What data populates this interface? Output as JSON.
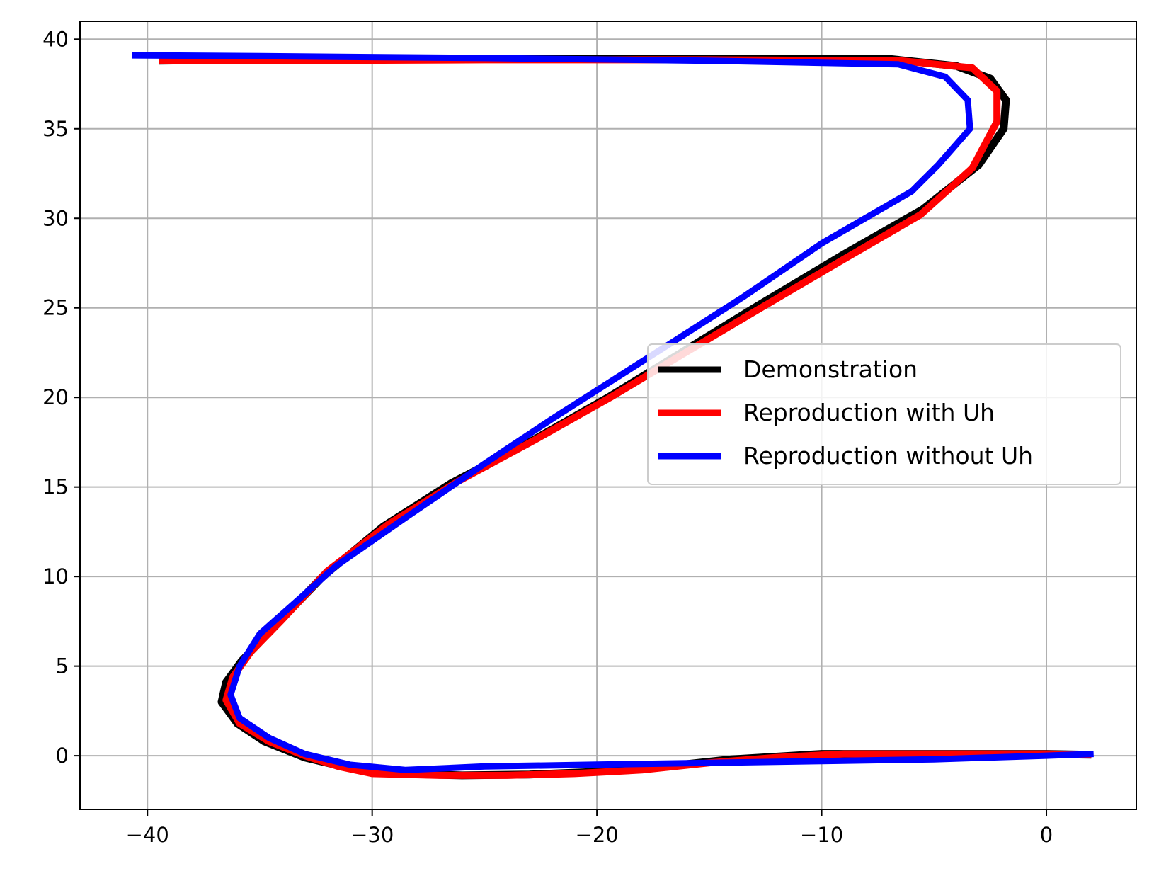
{
  "chart_data": {
    "type": "line",
    "title": "",
    "xlabel": "",
    "ylabel": "",
    "xlim": [
      -43,
      4
    ],
    "ylim": [
      -3,
      41
    ],
    "grid": true,
    "legend_position": "center-right",
    "x_ticks": [
      -40,
      -30,
      -20,
      -10,
      0
    ],
    "x_tick_labels": [
      "−40",
      "−30",
      "−20",
      "−10",
      "0"
    ],
    "y_ticks": [
      0,
      5,
      10,
      15,
      20,
      25,
      30,
      35,
      40
    ],
    "y_tick_labels": [
      "0",
      "5",
      "10",
      "15",
      "20",
      "25",
      "30",
      "35",
      "40"
    ],
    "series": [
      {
        "name": "Demonstration",
        "color": "#000000",
        "points": [
          [
            2.0,
            0.05
          ],
          [
            0.0,
            0.1
          ],
          [
            -5.0,
            0.1
          ],
          [
            -10.0,
            0.1
          ],
          [
            -14.0,
            -0.2
          ],
          [
            -17.0,
            -0.6
          ],
          [
            -20.0,
            -0.9
          ],
          [
            -23.0,
            -1.05
          ],
          [
            -26.0,
            -1.1
          ],
          [
            -29.0,
            -1.0
          ],
          [
            -31.0,
            -0.7
          ],
          [
            -33.0,
            -0.1
          ],
          [
            -34.8,
            0.8
          ],
          [
            -36.0,
            1.8
          ],
          [
            -36.7,
            3.0
          ],
          [
            -36.5,
            4.1
          ],
          [
            -35.8,
            5.3
          ],
          [
            -34.5,
            7.0
          ],
          [
            -32.2,
            10.0
          ],
          [
            -29.5,
            12.8
          ],
          [
            -26.5,
            15.2
          ],
          [
            -23.0,
            17.5
          ],
          [
            -19.5,
            20.0
          ],
          [
            -16.5,
            22.3
          ],
          [
            -13.0,
            25.0
          ],
          [
            -9.0,
            28.0
          ],
          [
            -5.5,
            30.5
          ],
          [
            -3.0,
            33.0
          ],
          [
            -1.9,
            35.0
          ],
          [
            -1.8,
            36.6
          ],
          [
            -2.5,
            37.8
          ],
          [
            -4.0,
            38.5
          ],
          [
            -7.0,
            38.9
          ],
          [
            -15.0,
            38.9
          ],
          [
            -25.0,
            38.9
          ],
          [
            -35.0,
            38.85
          ],
          [
            -39.5,
            38.8
          ]
        ]
      },
      {
        "name": "Reproduction with Uh",
        "color": "#ff0000",
        "points": [
          [
            2.0,
            0.05
          ],
          [
            0.0,
            0.1
          ],
          [
            -4.0,
            0.1
          ],
          [
            -9.0,
            0.1
          ],
          [
            -12.0,
            -0.1
          ],
          [
            -15.0,
            -0.4
          ],
          [
            -18.0,
            -0.8
          ],
          [
            -21.0,
            -1.0
          ],
          [
            -24.0,
            -1.1
          ],
          [
            -27.0,
            -1.1
          ],
          [
            -30.0,
            -1.0
          ],
          [
            -31.5,
            -0.6
          ],
          [
            -33.0,
            0.0
          ],
          [
            -34.6,
            0.8
          ],
          [
            -35.9,
            1.8
          ],
          [
            -36.5,
            3.1
          ],
          [
            -36.2,
            4.4
          ],
          [
            -35.4,
            5.8
          ],
          [
            -34.0,
            7.6
          ],
          [
            -32.0,
            10.3
          ],
          [
            -29.3,
            12.9
          ],
          [
            -26.2,
            15.3
          ],
          [
            -22.8,
            17.6
          ],
          [
            -19.4,
            20.0
          ],
          [
            -16.2,
            22.4
          ],
          [
            -12.7,
            25.0
          ],
          [
            -8.9,
            27.8
          ],
          [
            -5.6,
            30.2
          ],
          [
            -3.3,
            32.8
          ],
          [
            -2.2,
            35.4
          ],
          [
            -2.2,
            37.1
          ],
          [
            -3.3,
            38.4
          ],
          [
            -6.5,
            38.8
          ],
          [
            -15.0,
            38.85
          ],
          [
            -25.0,
            38.85
          ],
          [
            -35.0,
            38.8
          ],
          [
            -39.5,
            38.8
          ]
        ]
      },
      {
        "name": "Reproduction without Uh",
        "color": "#0000ff",
        "points": [
          [
            2.1,
            0.1
          ],
          [
            0.0,
            0.0
          ],
          [
            -5.0,
            -0.2
          ],
          [
            -10.0,
            -0.3
          ],
          [
            -15.0,
            -0.4
          ],
          [
            -20.0,
            -0.5
          ],
          [
            -25.0,
            -0.6
          ],
          [
            -28.5,
            -0.8
          ],
          [
            -31.0,
            -0.5
          ],
          [
            -33.0,
            0.1
          ],
          [
            -34.6,
            1.0
          ],
          [
            -35.9,
            2.1
          ],
          [
            -36.3,
            3.4
          ],
          [
            -35.9,
            5.0
          ],
          [
            -35.0,
            6.8
          ],
          [
            -33.2,
            8.8
          ],
          [
            -31.6,
            10.6
          ],
          [
            -28.5,
            13.3
          ],
          [
            -25.0,
            16.3
          ],
          [
            -22.0,
            18.8
          ],
          [
            -19.5,
            20.8
          ],
          [
            -17.0,
            22.8
          ],
          [
            -13.5,
            25.6
          ],
          [
            -10.0,
            28.6
          ],
          [
            -6.0,
            31.5
          ],
          [
            -4.8,
            33.0
          ],
          [
            -3.4,
            35.0
          ],
          [
            -3.5,
            36.6
          ],
          [
            -4.5,
            37.9
          ],
          [
            -6.6,
            38.6
          ],
          [
            -15.0,
            38.8
          ],
          [
            -25.0,
            38.95
          ],
          [
            -35.0,
            39.05
          ],
          [
            -40.7,
            39.1
          ]
        ]
      }
    ]
  }
}
